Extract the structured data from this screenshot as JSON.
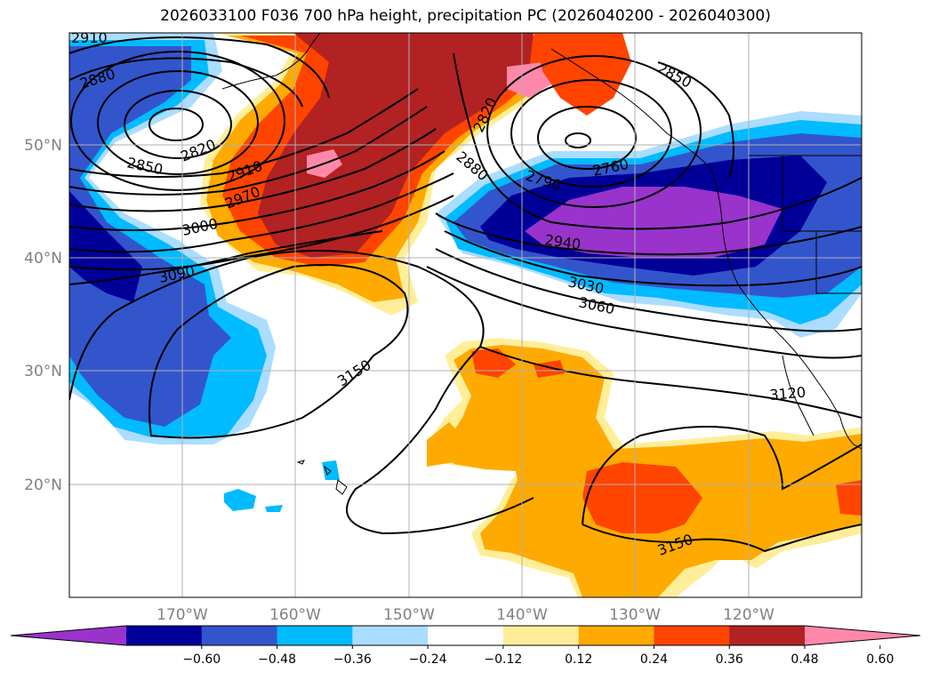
{
  "title": "2026033100 F036 700 hPa height, precipitation PC (2026040200 - 2026040300)",
  "lat_labels": [
    "50°N",
    "40°N",
    "30°N",
    "20°N"
  ],
  "lon_labels": [
    "170°W",
    "160°W",
    "150°W",
    "140°W",
    "130°W",
    "120°W"
  ],
  "contour_labels": [
    "2910",
    "2880",
    "2850",
    "2820",
    "2910",
    "2970",
    "3000",
    "3090",
    "3150",
    "2820",
    "2850",
    "2880",
    "2790",
    "2760",
    "2940",
    "3030",
    "3060",
    "3120",
    "3150"
  ],
  "colorbar": {
    "ticks": [
      "−0.60",
      "−0.48",
      "−0.36",
      "−0.24",
      "−0.12",
      "0.12",
      "0.24",
      "0.36",
      "0.48",
      "0.60"
    ],
    "colors": [
      "#9933cc",
      "#000099",
      "#3355cc",
      "#00bbff",
      "#aaddff",
      "#ffffff",
      "#ffee99",
      "#ffaa00",
      "#ff4400",
      "#b22222",
      "#ff88aa"
    ]
  }
}
